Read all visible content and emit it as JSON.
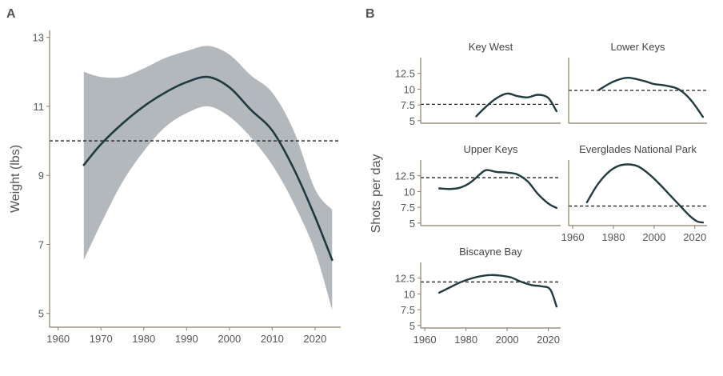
{
  "panel_labels": [
    "A",
    "B"
  ],
  "colors": {
    "line": "#1f3a40",
    "ribbon": "#b3b8bc",
    "axis": "#8b7e68",
    "text": "#555555",
    "reference": "#222222"
  },
  "chart_data": [
    {
      "type": "line",
      "panel": "A",
      "ylabel": "Weight (lbs)",
      "xlabel": "",
      "xlim": [
        1958,
        2026
      ],
      "ylim": [
        4.6,
        13.2
      ],
      "xticks": [
        1960,
        1970,
        1980,
        1990,
        2000,
        2010,
        2020
      ],
      "yticks": [
        5,
        7,
        9,
        11,
        13
      ],
      "reference_line": 10.0,
      "series": [
        {
          "x": [
            1966,
            1970,
            1975,
            1980,
            1985,
            1990,
            1995,
            2000,
            2005,
            2010,
            2015,
            2020,
            2024
          ],
          "values": [
            9.3,
            9.9,
            10.5,
            11.0,
            11.4,
            11.7,
            11.85,
            11.55,
            10.9,
            10.3,
            9.2,
            7.8,
            6.55
          ]
        }
      ],
      "ribbon": {
        "x": [
          1966,
          1970,
          1975,
          1980,
          1985,
          1990,
          1995,
          2000,
          2005,
          2010,
          2015,
          2020,
          2024
        ],
        "lower": [
          6.55,
          7.6,
          8.8,
          9.7,
          10.4,
          10.8,
          11.0,
          10.7,
          10.1,
          9.3,
          8.2,
          6.8,
          5.1
        ],
        "upper": [
          12.0,
          11.85,
          11.85,
          12.1,
          12.4,
          12.6,
          12.75,
          12.5,
          11.9,
          11.4,
          10.3,
          8.6,
          8.0
        ]
      }
    },
    {
      "type": "line",
      "panel": "B",
      "ylabel": "Shots per day",
      "facets": [
        {
          "title": "Key West",
          "xlim": [
            1958,
            2026
          ],
          "ylim": [
            4.6,
            15.0
          ],
          "yticks": [
            5.0,
            7.5,
            10.0,
            12.5
          ],
          "show_xticks": false,
          "reference_line": 7.6,
          "x": [
            1985,
            1990,
            1995,
            2000,
            2005,
            2010,
            2015,
            2020,
            2024
          ],
          "values": [
            5.7,
            7.3,
            8.6,
            9.3,
            8.9,
            8.7,
            9.1,
            8.6,
            6.5
          ]
        },
        {
          "title": "Lower Keys",
          "xlim": [
            1958,
            2026
          ],
          "ylim": [
            4.6,
            15.0
          ],
          "yticks": [],
          "show_xticks": false,
          "reference_line": 9.8,
          "x": [
            1973,
            1980,
            1987,
            1995,
            2000,
            2005,
            2012,
            2018,
            2024
          ],
          "values": [
            9.9,
            11.2,
            11.8,
            11.3,
            10.8,
            10.6,
            10.0,
            8.3,
            5.6
          ]
        },
        {
          "title": "Upper Keys",
          "xlim": [
            1958,
            2026
          ],
          "ylim": [
            4.6,
            15.0
          ],
          "yticks": [
            5.0,
            7.5,
            10.0,
            12.5
          ],
          "show_xticks": false,
          "reference_line": 12.2,
          "x": [
            1967,
            1972,
            1977,
            1982,
            1987,
            1990,
            1995,
            2000,
            2005,
            2010,
            2015,
            2020,
            2024
          ],
          "values": [
            10.5,
            10.4,
            10.6,
            11.4,
            12.8,
            13.4,
            13.1,
            13.0,
            12.7,
            11.6,
            9.6,
            8.1,
            7.4
          ]
        },
        {
          "title": "Everglades National Park",
          "xlim": [
            1958,
            2026
          ],
          "ylim": [
            4.6,
            15.0
          ],
          "yticks": [],
          "show_xticks": true,
          "xticks": [
            1960,
            1980,
            2000,
            2020
          ],
          "reference_line": 7.7,
          "x": [
            1967,
            1972,
            1977,
            1982,
            1987,
            1992,
            1997,
            2002,
            2007,
            2012,
            2017,
            2021,
            2024
          ],
          "values": [
            8.3,
            11.0,
            12.9,
            14.0,
            14.3,
            14.0,
            12.9,
            11.4,
            9.7,
            8.0,
            6.3,
            5.3,
            5.1
          ]
        },
        {
          "title": "Biscayne Bay",
          "xlim": [
            1958,
            2026
          ],
          "ylim": [
            4.6,
            15.0
          ],
          "yticks": [
            5.0,
            7.5,
            10.0,
            12.5
          ],
          "show_xticks": true,
          "xticks": [
            1960,
            1980,
            2000,
            2020
          ],
          "reference_line": 11.9,
          "x": [
            1967,
            1972,
            1977,
            1982,
            1987,
            1992,
            1997,
            2002,
            2007,
            2012,
            2017,
            2021,
            2024
          ],
          "values": [
            10.2,
            11.0,
            11.8,
            12.4,
            12.8,
            13.0,
            12.9,
            12.6,
            11.9,
            11.4,
            11.2,
            10.7,
            8.0
          ]
        }
      ]
    }
  ]
}
